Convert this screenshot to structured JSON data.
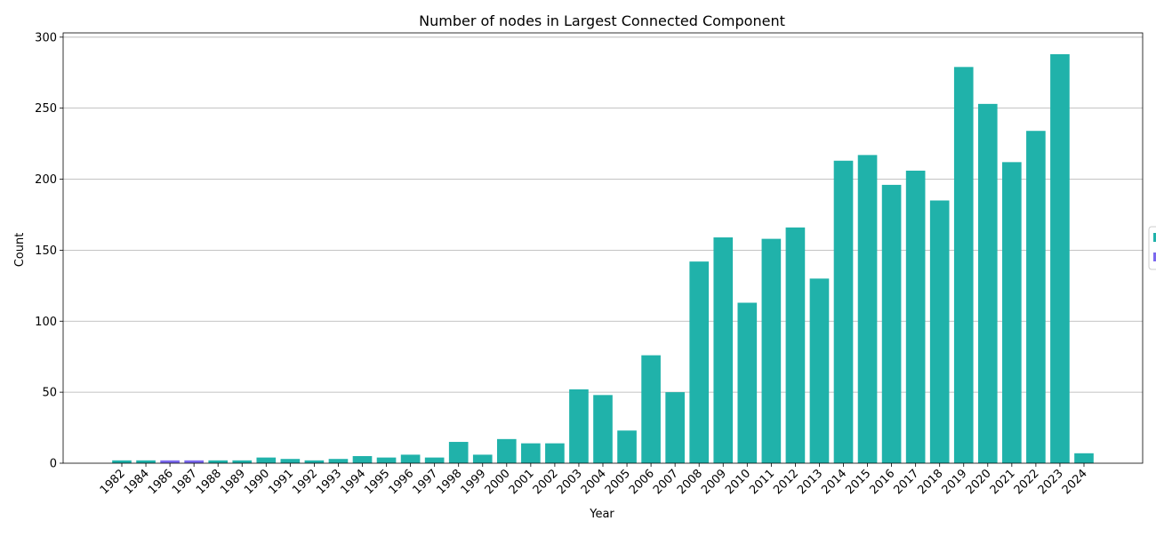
{
  "chart_data": {
    "type": "bar",
    "title": "Number of nodes in Largest Connected Component",
    "xlabel": "Year",
    "ylabel": "Count",
    "ylim": [
      0,
      303
    ],
    "yticks": [
      0,
      50,
      100,
      150,
      200,
      250,
      300
    ],
    "grid": "horizontal",
    "legend_position": "right (partially cropped)",
    "colors": {
      "primary": "#20b2aa",
      "secondary": "#7b68ee"
    },
    "legend_entries": [
      {
        "color": "#20b2aa",
        "label": ""
      },
      {
        "color": "#7b68ee",
        "label": ""
      }
    ],
    "categories": [
      "1982",
      "1984",
      "1986",
      "1987",
      "1988",
      "1989",
      "1990",
      "1991",
      "1992",
      "1993",
      "1994",
      "1995",
      "1996",
      "1997",
      "1998",
      "1999",
      "2000",
      "2001",
      "2002",
      "2003",
      "2004",
      "2005",
      "2006",
      "2007",
      "2008",
      "2009",
      "2010",
      "2011",
      "2012",
      "2013",
      "2014",
      "2015",
      "2016",
      "2017",
      "2018",
      "2019",
      "2020",
      "2021",
      "2022",
      "2023",
      "2024"
    ],
    "values": [
      2,
      2,
      2,
      2,
      2,
      2,
      4,
      3,
      2,
      3,
      5,
      4,
      6,
      4,
      15,
      6,
      17,
      14,
      14,
      52,
      48,
      23,
      76,
      50,
      142,
      159,
      113,
      158,
      166,
      130,
      213,
      217,
      196,
      206,
      185,
      279,
      253,
      212,
      234,
      288,
      7
    ],
    "bar_colors": [
      "#20b2aa",
      "#20b2aa",
      "#7b68ee",
      "#7b68ee",
      "#20b2aa",
      "#20b2aa",
      "#20b2aa",
      "#20b2aa",
      "#20b2aa",
      "#20b2aa",
      "#20b2aa",
      "#20b2aa",
      "#20b2aa",
      "#20b2aa",
      "#20b2aa",
      "#20b2aa",
      "#20b2aa",
      "#20b2aa",
      "#20b2aa",
      "#20b2aa",
      "#20b2aa",
      "#20b2aa",
      "#20b2aa",
      "#20b2aa",
      "#20b2aa",
      "#20b2aa",
      "#20b2aa",
      "#20b2aa",
      "#20b2aa",
      "#20b2aa",
      "#20b2aa",
      "#20b2aa",
      "#20b2aa",
      "#20b2aa",
      "#20b2aa",
      "#20b2aa",
      "#20b2aa",
      "#20b2aa",
      "#20b2aa",
      "#20b2aa",
      "#20b2aa"
    ]
  }
}
